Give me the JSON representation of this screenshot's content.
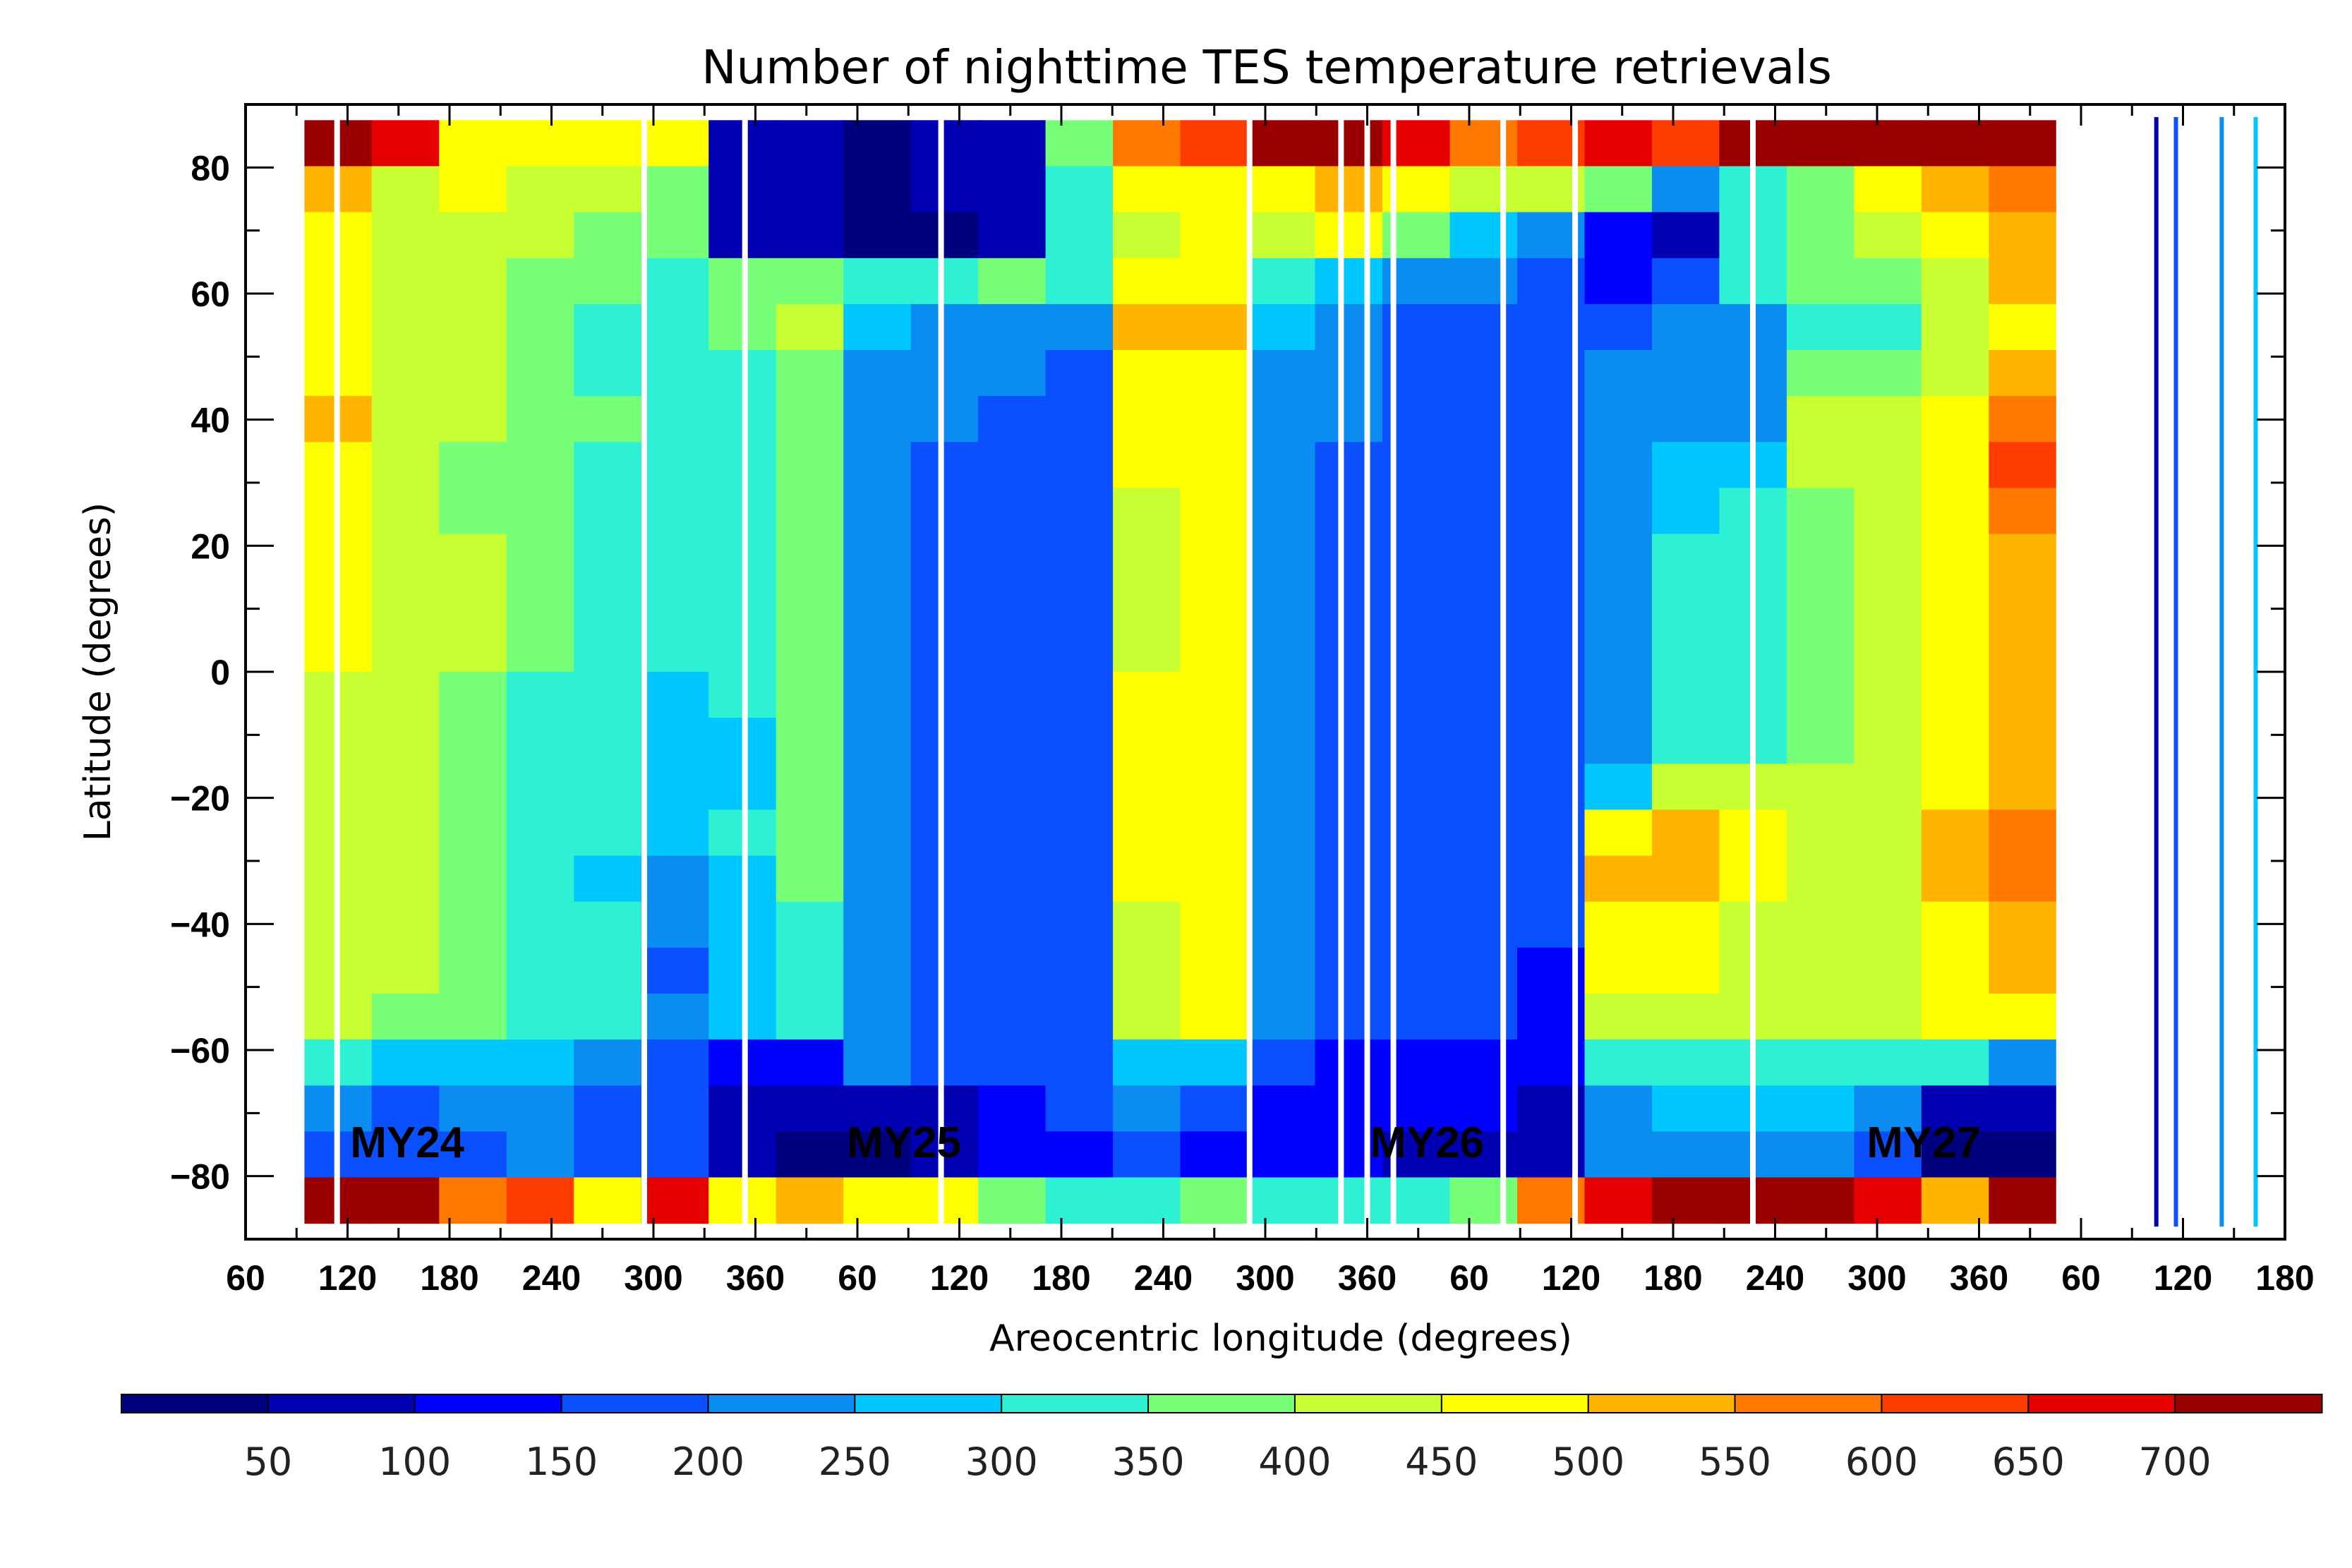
{
  "chart_data": {
    "type": "heatmap",
    "title": "Number of nighttime TES temperature retrievals",
    "xlabel": "Areocentric longitude (degrees)",
    "ylabel": "Latitude (degrees)",
    "x_tick_labels": [
      "60",
      "120",
      "180",
      "240",
      "300",
      "360",
      "60",
      "120",
      "180",
      "240",
      "300",
      "360",
      "60",
      "120",
      "180",
      "240",
      "300",
      "360",
      "60",
      "120",
      "180"
    ],
    "y_ticks": [
      80,
      60,
      40,
      20,
      0,
      -20,
      -40,
      -60,
      -80
    ],
    "y_tick_labels": [
      "80",
      "60",
      "40",
      "20",
      "0",
      "−20",
      "−40",
      "−60",
      "−80"
    ],
    "ylim": [
      -90,
      90
    ],
    "xlim": [
      60,
      1620
    ],
    "colorbar": {
      "labels": [
        "50",
        "100",
        "150",
        "200",
        "250",
        "300",
        "350",
        "400",
        "450",
        "500",
        "550",
        "600",
        "650",
        "700"
      ],
      "values": [
        50,
        100,
        150,
        200,
        250,
        300,
        350,
        400,
        450,
        500,
        550,
        600,
        650,
        700
      ],
      "range": [
        0,
        750
      ],
      "colors": [
        "#00007f",
        "#0000b2",
        "#0000ff",
        "#0a50ff",
        "#0a8cf0",
        "#00c8ff",
        "#2ef0d2",
        "#78ff78",
        "#c8ff32",
        "#ffff00",
        "#ffb400",
        "#ff7800",
        "#ff3c00",
        "#e60000",
        "#9a0000"
      ]
    },
    "year_labels": [
      {
        "text": "MY24",
        "ls": 140
      },
      {
        "text": "MY25",
        "ls": 520
      },
      {
        "text": "MY26",
        "ls": 920
      },
      {
        "text": "MY27",
        "ls": 1300
      }
    ],
    "year_boundaries_ls": [
      360,
      720,
      1080,
      1440
    ],
    "cell_values": [
      [
        700,
        650,
        450,
        450,
        450,
        450,
        80,
        60,
        40,
        60,
        80,
        350,
        550,
        600,
        700,
        700,
        650,
        550,
        600,
        650,
        600,
        700,
        700,
        720,
        720,
        700
      ],
      [
        520,
        430,
        450,
        420,
        400,
        380,
        80,
        50,
        40,
        50,
        80,
        300,
        450,
        480,
        450,
        500,
        450,
        420,
        400,
        350,
        200,
        300,
        350,
        450,
        500,
        550
      ],
      [
        480,
        420,
        400,
        400,
        380,
        350,
        70,
        50,
        30,
        40,
        60,
        300,
        420,
        470,
        420,
        450,
        350,
        250,
        200,
        100,
        80,
        300,
        350,
        400,
        450,
        520
      ],
      [
        450,
        400,
        400,
        380,
        350,
        330,
        380,
        350,
        300,
        320,
        350,
        320,
        450,
        450,
        320,
        250,
        200,
        200,
        150,
        120,
        150,
        300,
        350,
        380,
        420,
        500
      ],
      [
        460,
        400,
        420,
        380,
        330,
        300,
        350,
        400,
        250,
        200,
        220,
        200,
        500,
        500,
        250,
        220,
        180,
        180,
        160,
        180,
        200,
        200,
        330,
        330,
        420,
        480
      ],
      [
        480,
        420,
        400,
        380,
        320,
        330,
        330,
        380,
        230,
        200,
        200,
        180,
        450,
        480,
        240,
        220,
        180,
        170,
        180,
        200,
        220,
        200,
        380,
        380,
        430,
        500
      ],
      [
        500,
        420,
        400,
        360,
        350,
        330,
        300,
        380,
        220,
        200,
        180,
        180,
        450,
        480,
        220,
        200,
        180,
        160,
        170,
        200,
        240,
        200,
        400,
        430,
        450,
        550
      ],
      [
        460,
        420,
        380,
        350,
        320,
        300,
        320,
        380,
        220,
        180,
        160,
        160,
        480,
        460,
        200,
        190,
        170,
        160,
        180,
        220,
        250,
        280,
        400,
        430,
        470,
        600
      ],
      [
        450,
        400,
        380,
        350,
        320,
        300,
        300,
        380,
        220,
        180,
        160,
        150,
        420,
        450,
        200,
        190,
        170,
        150,
        160,
        200,
        280,
        300,
        380,
        420,
        450,
        560
      ],
      [
        470,
        420,
        400,
        360,
        330,
        320,
        320,
        380,
        220,
        180,
        160,
        150,
        430,
        480,
        200,
        180,
        160,
        150,
        170,
        220,
        300,
        300,
        380,
        430,
        460,
        520
      ],
      [
        470,
        420,
        400,
        360,
        330,
        300,
        300,
        380,
        220,
        180,
        160,
        150,
        430,
        480,
        200,
        190,
        170,
        160,
        170,
        220,
        300,
        300,
        380,
        430,
        470,
        520
      ],
      [
        460,
        410,
        400,
        350,
        320,
        300,
        300,
        380,
        220,
        180,
        160,
        150,
        430,
        480,
        200,
        190,
        170,
        160,
        160,
        200,
        300,
        300,
        380,
        430,
        460,
        520
      ],
      [
        440,
        400,
        380,
        340,
        310,
        290,
        300,
        380,
        220,
        180,
        160,
        150,
        450,
        480,
        200,
        190,
        170,
        160,
        150,
        200,
        300,
        330,
        380,
        420,
        460,
        520
      ],
      [
        430,
        400,
        380,
        340,
        310,
        290,
        290,
        380,
        220,
        180,
        160,
        150,
        450,
        480,
        200,
        190,
        170,
        160,
        150,
        200,
        300,
        330,
        380,
        420,
        460,
        520
      ],
      [
        420,
        400,
        380,
        330,
        310,
        280,
        280,
        380,
        220,
        180,
        160,
        150,
        450,
        480,
        200,
        190,
        160,
        150,
        150,
        280,
        400,
        400,
        400,
        430,
        480,
        520
      ],
      [
        420,
        400,
        380,
        320,
        300,
        250,
        300,
        380,
        220,
        180,
        160,
        150,
        460,
        480,
        200,
        190,
        160,
        150,
        150,
        450,
        500,
        450,
        420,
        430,
        500,
        550
      ],
      [
        420,
        400,
        370,
        320,
        290,
        200,
        280,
        350,
        220,
        180,
        160,
        150,
        450,
        480,
        200,
        190,
        160,
        150,
        150,
        500,
        500,
        450,
        420,
        430,
        500,
        550
      ],
      [
        430,
        400,
        380,
        320,
        300,
        200,
        260,
        300,
        220,
        180,
        160,
        150,
        440,
        470,
        200,
        180,
        160,
        150,
        150,
        480,
        480,
        430,
        420,
        420,
        480,
        520
      ],
      [
        430,
        400,
        380,
        320,
        300,
        180,
        260,
        300,
        220,
        180,
        160,
        150,
        430,
        460,
        200,
        180,
        160,
        150,
        140,
        450,
        450,
        420,
        400,
        420,
        450,
        500
      ],
      [
        420,
        390,
        370,
        320,
        300,
        200,
        280,
        300,
        220,
        180,
        160,
        150,
        420,
        450,
        200,
        180,
        160,
        150,
        140,
        440,
        440,
        420,
        400,
        420,
        450,
        450
      ],
      [
        300,
        280,
        280,
        260,
        240,
        180,
        100,
        100,
        200,
        180,
        160,
        150,
        250,
        250,
        150,
        140,
        120,
        110,
        100,
        300,
        330,
        330,
        320,
        310,
        300,
        200
      ],
      [
        200,
        180,
        200,
        200,
        180,
        150,
        80,
        60,
        70,
        80,
        120,
        150,
        200,
        180,
        140,
        130,
        110,
        100,
        80,
        220,
        250,
        250,
        250,
        200,
        80,
        60
      ],
      [
        150,
        150,
        180,
        200,
        150,
        150,
        60,
        40,
        40,
        60,
        100,
        140,
        180,
        120,
        120,
        110,
        90,
        80,
        60,
        200,
        230,
        230,
        220,
        150,
        40,
        40
      ],
      [
        700,
        700,
        550,
        600,
        450,
        650,
        450,
        500,
        450,
        450,
        350,
        300,
        300,
        350,
        300,
        300,
        300,
        350,
        550,
        650,
        700,
        700,
        700,
        650,
        500,
        700
      ]
    ]
  }
}
